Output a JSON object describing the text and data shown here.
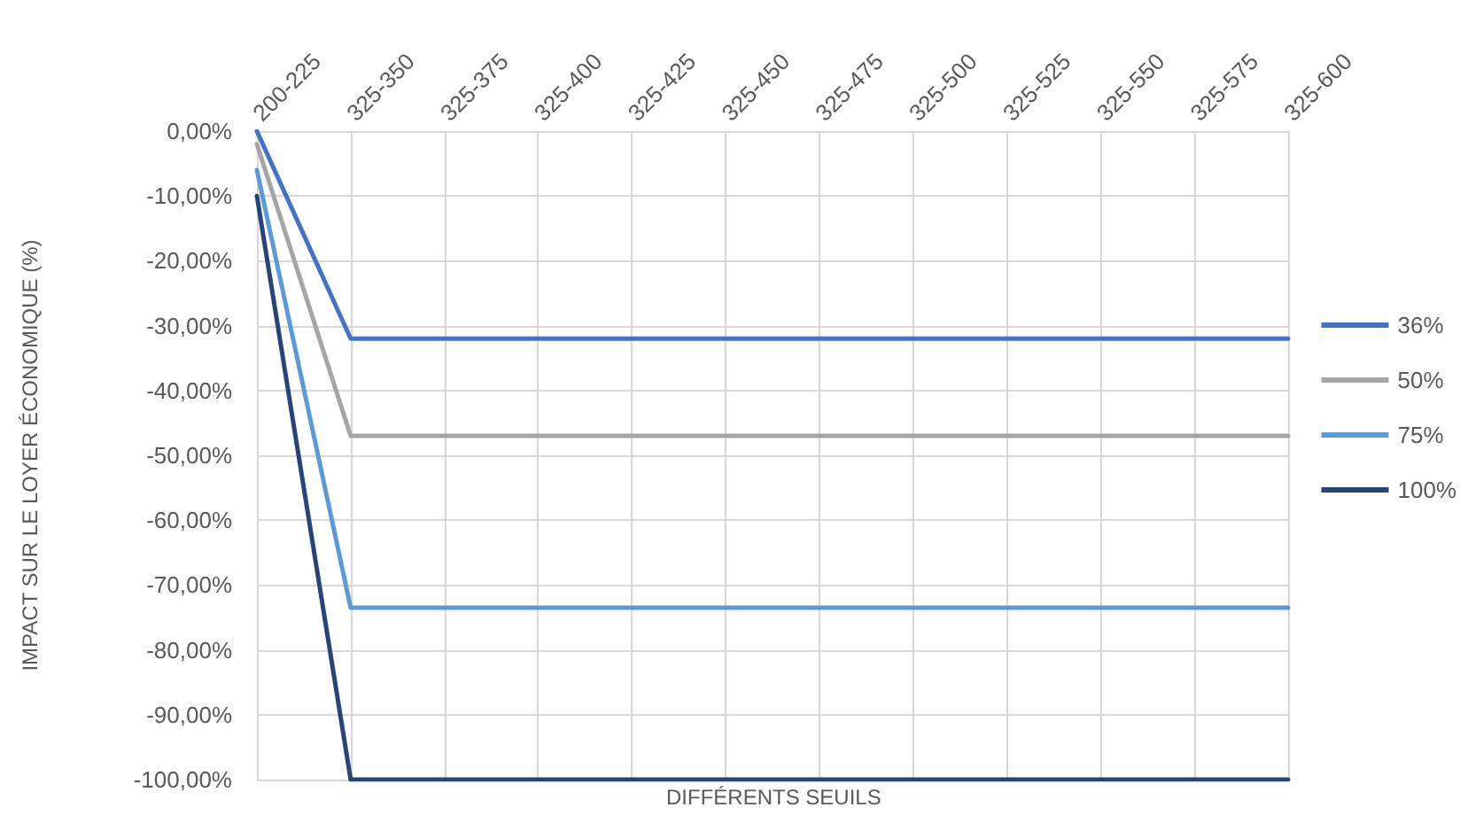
{
  "chart_data": {
    "type": "line",
    "xlabel": "DIFFÉRENTS SEUILS",
    "ylabel": "IMPACT SUR LE LOYER ÉCONOMIQUE (%)",
    "categories": [
      "200-225",
      "325-350",
      "325-375",
      "325-400",
      "325-425",
      "325-450",
      "325-475",
      "325-500",
      "325-525",
      "325-550",
      "325-575",
      "325-600"
    ],
    "series": [
      {
        "name": "36%",
        "color": "#4472c4",
        "values": [
          0,
          -32,
          -32,
          -32,
          -32,
          -32,
          -32,
          -32,
          -32,
          -32,
          -32,
          -32
        ]
      },
      {
        "name": "50%",
        "color": "#a5a5a5",
        "values": [
          -2,
          -47,
          -47,
          -47,
          -47,
          -47,
          -47,
          -47,
          -47,
          -47,
          -47,
          -47
        ]
      },
      {
        "name": "75%",
        "color": "#5b9bd5",
        "values": [
          -6,
          -73.5,
          -73.5,
          -73.5,
          -73.5,
          -73.5,
          -73.5,
          -73.5,
          -73.5,
          -73.5,
          -73.5,
          -73.5
        ]
      },
      {
        "name": "100%",
        "color": "#264478",
        "values": [
          -10,
          -100,
          -100,
          -100,
          -100,
          -100,
          -100,
          -100,
          -100,
          -100,
          -100,
          -100
        ]
      }
    ],
    "ylim": [
      -100,
      0
    ],
    "yticks": [
      {
        "value": 0,
        "label": "0,00%"
      },
      {
        "value": -10,
        "label": "-10,00%"
      },
      {
        "value": -20,
        "label": "-20,00%"
      },
      {
        "value": -30,
        "label": "-30,00%"
      },
      {
        "value": -40,
        "label": "-40,00%"
      },
      {
        "value": -50,
        "label": "-50,00%"
      },
      {
        "value": -60,
        "label": "-60,00%"
      },
      {
        "value": -70,
        "label": "-70,00%"
      },
      {
        "value": -80,
        "label": "-80,00%"
      },
      {
        "value": -90,
        "label": "-90,00%"
      },
      {
        "value": -100,
        "label": "-100,00%"
      }
    ],
    "grid": true,
    "legend": "right",
    "marker": "none",
    "line_style": "solid"
  }
}
